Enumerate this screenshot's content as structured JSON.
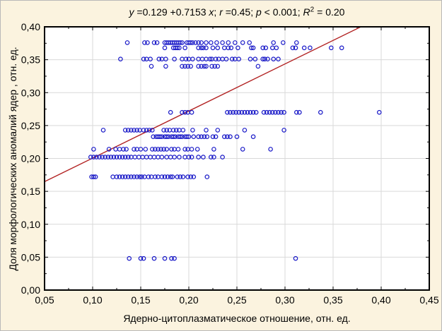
{
  "window": {
    "background": "#FBF3DF"
  },
  "chart": {
    "title_segments": [
      {
        "text": "y",
        "style": "italic"
      },
      {
        "text": " =0.129 +0.7153 "
      },
      {
        "text": "x",
        "style": "italic"
      },
      {
        "text": ";  "
      },
      {
        "text": "r",
        "style": "italic"
      },
      {
        "text": " =0.45;  "
      },
      {
        "text": "p",
        "style": "italic"
      },
      {
        "text": "  < 0.001;  "
      },
      {
        "text": "R",
        "style": "italic"
      },
      {
        "text": "2",
        "style": "sup"
      },
      {
        "text": " = 0.20"
      }
    ]
  },
  "chart_data": {
    "type": "scatter",
    "title": "y = 0.129 + 0.7153x; r = 0.45; p < 0.001; R2 = 0.20",
    "x_axis": {
      "label": "Ядерно-цитоплазматическое отношение, отн. ед.",
      "min": 0.05,
      "max": 0.45,
      "minor_step": 0.025,
      "tick_values": [
        0.05,
        0.1,
        0.15,
        0.2,
        0.25,
        0.3,
        0.35,
        0.4,
        0.45
      ],
      "tick_labels": [
        "0,05",
        "0,10",
        "0,15",
        "0,20",
        "0,25",
        "0,30",
        "0,35",
        "0,40",
        "0,45"
      ]
    },
    "y_axis": {
      "label": "Доля морфологических аномалий ядер , отн. ед.",
      "min": 0.0,
      "max": 0.4,
      "minor_step": 0.025,
      "tick_values": [
        0.0,
        0.05,
        0.1,
        0.15,
        0.2,
        0.25,
        0.3,
        0.35,
        0.4
      ],
      "tick_labels": [
        "0,00",
        "0,05",
        "0,10",
        "0,15",
        "0,20",
        "0,25",
        "0,30",
        "0,35",
        "0,40"
      ]
    },
    "grid": {
      "on": true,
      "color": "#d9d9d9"
    },
    "marker": {
      "shape": "open-circle",
      "color": "#1a1ac8",
      "radius": 2.7
    },
    "regression": {
      "slope": 0.7153,
      "intercept": 0.129,
      "r": 0.45,
      "p": "< 0.001",
      "r2": 0.2,
      "color": "#B22222",
      "x_start": 0.05,
      "x_end": 0.3789
    },
    "bands": [
      {
        "y": 0.376,
        "x": [
          0.136,
          0.154,
          0.157,
          0.164,
          0.167,
          0.175,
          0.177,
          0.179,
          0.181,
          0.183,
          0.185,
          0.187,
          0.189,
          0.191,
          0.193,
          0.198,
          0.2,
          0.202,
          0.204,
          0.207,
          0.21,
          0.213,
          0.218,
          0.223,
          0.229,
          0.235,
          0.241,
          0.248,
          0.256,
          0.263,
          0.288,
          0.298,
          0.312
        ]
      },
      {
        "y": 0.368,
        "x": [
          0.175,
          0.184,
          0.186,
          0.188,
          0.19,
          0.196,
          0.21,
          0.213,
          0.215,
          0.218,
          0.225,
          0.23,
          0.237,
          0.241,
          0.244,
          0.251,
          0.265,
          0.267,
          0.277,
          0.28,
          0.287,
          0.291,
          0.308,
          0.311,
          0.32,
          0.326,
          0.348,
          0.359
        ]
      },
      {
        "y": 0.351,
        "x": [
          0.129,
          0.153,
          0.156,
          0.16,
          0.169,
          0.172,
          0.176,
          0.185,
          0.193,
          0.197,
          0.2,
          0.204,
          0.21,
          0.214,
          0.218,
          0.222,
          0.224,
          0.228,
          0.231,
          0.235,
          0.239,
          0.245,
          0.248,
          0.252,
          0.264,
          0.269,
          0.277,
          0.279,
          0.282,
          0.288,
          0.293
        ]
      },
      {
        "y": 0.34,
        "x": [
          0.161,
          0.176,
          0.193,
          0.196,
          0.199,
          0.202,
          0.21,
          0.213,
          0.216,
          0.218,
          0.224,
          0.227,
          0.23,
          0.272
        ]
      },
      {
        "y": 0.27,
        "x": [
          0.181,
          0.193,
          0.196,
          0.199,
          0.203,
          0.24,
          0.243,
          0.246,
          0.249,
          0.252,
          0.255,
          0.258,
          0.261,
          0.264,
          0.267,
          0.27,
          0.278,
          0.281,
          0.284,
          0.287,
          0.29,
          0.293,
          0.296,
          0.299,
          0.312,
          0.315,
          0.337,
          0.398
        ]
      },
      {
        "y": 0.243,
        "x": [
          0.111,
          0.134,
          0.137,
          0.14,
          0.143,
          0.146,
          0.149,
          0.153,
          0.156,
          0.159,
          0.162,
          0.174,
          0.177,
          0.18,
          0.184,
          0.187,
          0.19,
          0.194,
          0.204,
          0.218,
          0.23,
          0.258,
          0.299
        ]
      },
      {
        "y": 0.233,
        "x": [
          0.163,
          0.166,
          0.168,
          0.17,
          0.172,
          0.175,
          0.177,
          0.179,
          0.182,
          0.184,
          0.186,
          0.189,
          0.191,
          0.193,
          0.196,
          0.198,
          0.2,
          0.205,
          0.21,
          0.213,
          0.216,
          0.219,
          0.225,
          0.228,
          0.237,
          0.24,
          0.243,
          0.25,
          0.267
        ]
      },
      {
        "y": 0.214,
        "x": [
          0.101,
          0.117,
          0.124,
          0.128,
          0.132,
          0.135,
          0.143,
          0.146,
          0.15,
          0.155,
          0.162,
          0.165,
          0.168,
          0.171,
          0.174,
          0.177,
          0.182,
          0.185,
          0.189,
          0.196,
          0.199,
          0.203,
          0.209,
          0.226,
          0.256,
          0.285
        ]
      },
      {
        "y": 0.202,
        "x": [
          0.098,
          0.101,
          0.104,
          0.107,
          0.11,
          0.113,
          0.116,
          0.119,
          0.122,
          0.125,
          0.128,
          0.131,
          0.134,
          0.137,
          0.14,
          0.144,
          0.148,
          0.152,
          0.156,
          0.16,
          0.164,
          0.168,
          0.172,
          0.177,
          0.181,
          0.185,
          0.19,
          0.196,
          0.2,
          0.203,
          0.21,
          0.215,
          0.223,
          0.226,
          0.235
        ]
      },
      {
        "y": 0.172,
        "x": [
          0.099,
          0.101,
          0.103,
          0.121,
          0.125,
          0.128,
          0.131,
          0.134,
          0.137,
          0.14,
          0.143,
          0.146,
          0.149,
          0.151,
          0.154,
          0.158,
          0.161,
          0.165,
          0.168,
          0.172,
          0.175,
          0.178,
          0.181,
          0.183,
          0.188,
          0.191,
          0.194,
          0.199,
          0.202,
          0.205,
          0.219
        ]
      },
      {
        "y": 0.048,
        "x": [
          0.138,
          0.15,
          0.153,
          0.164,
          0.175,
          0.182,
          0.185,
          0.311
        ]
      }
    ]
  }
}
